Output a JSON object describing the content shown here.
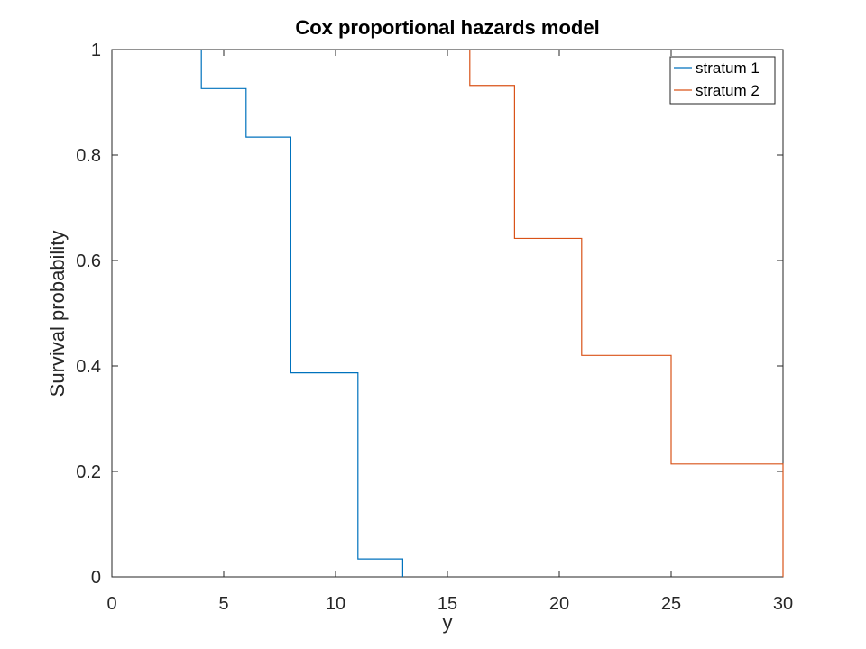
{
  "chart_data": {
    "type": "line",
    "step": "post",
    "title": "Cox proportional hazards model",
    "xlabel": "y",
    "ylabel": "Survival probability",
    "xlim": [
      0,
      30
    ],
    "ylim": [
      0,
      1
    ],
    "xticks": [
      0,
      5,
      10,
      15,
      20,
      25,
      30
    ],
    "yticks": [
      0,
      0.2,
      0.4,
      0.6,
      0.8,
      1
    ],
    "xtick_labels": [
      "0",
      "5",
      "10",
      "15",
      "20",
      "25",
      "30"
    ],
    "ytick_labels": [
      "0",
      "0.2",
      "0.4",
      "0.6",
      "0.8",
      "1"
    ],
    "grid": false,
    "legend_position": "top-right",
    "series": [
      {
        "name": "stratum 1",
        "color": "#0072bd",
        "x": [
          4,
          4,
          6,
          8,
          11,
          13
        ],
        "y": [
          1,
          0.926,
          0.834,
          0.387,
          0.034,
          0
        ]
      },
      {
        "name": "stratum 2",
        "color": "#d95319",
        "x": [
          16,
          16,
          18,
          21,
          25,
          30
        ],
        "y": [
          1,
          0.932,
          0.642,
          0.42,
          0.214,
          0
        ]
      }
    ]
  }
}
